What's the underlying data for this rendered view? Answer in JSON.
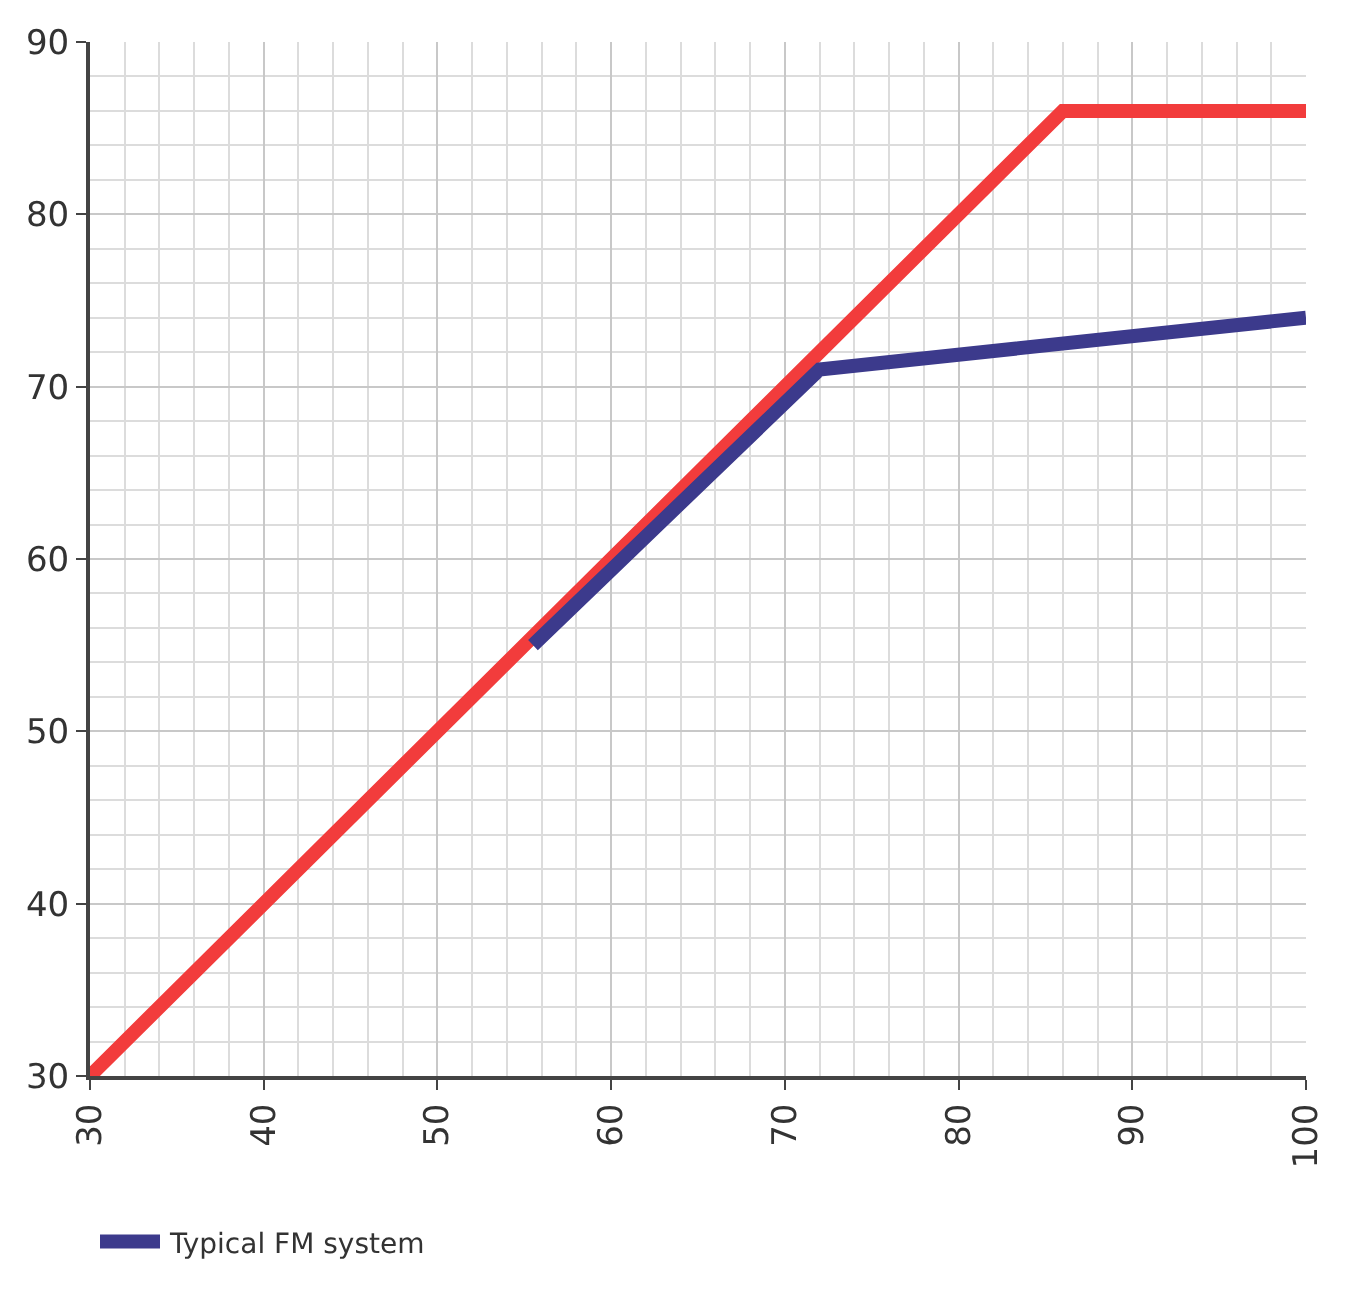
{
  "chart_data": {
    "type": "line",
    "xlim": [
      30,
      100
    ],
    "ylim": [
      30,
      90
    ],
    "xticks": [
      30,
      40,
      50,
      60,
      70,
      80,
      90,
      100
    ],
    "yticks": [
      30,
      40,
      50,
      60,
      70,
      80,
      90
    ],
    "grid": true,
    "legend": "bottom",
    "line_style": "solid",
    "marker": "none",
    "series": [
      {
        "color": "#f23c3c",
        "x": [
          30,
          86,
          100
        ],
        "values": [
          30,
          86,
          86
        ]
      },
      {
        "name": "Typical FM system",
        "color": "#3c3a8c",
        "x": [
          55.5,
          72,
          100
        ],
        "values": [
          55,
          71,
          74
        ]
      }
    ]
  }
}
